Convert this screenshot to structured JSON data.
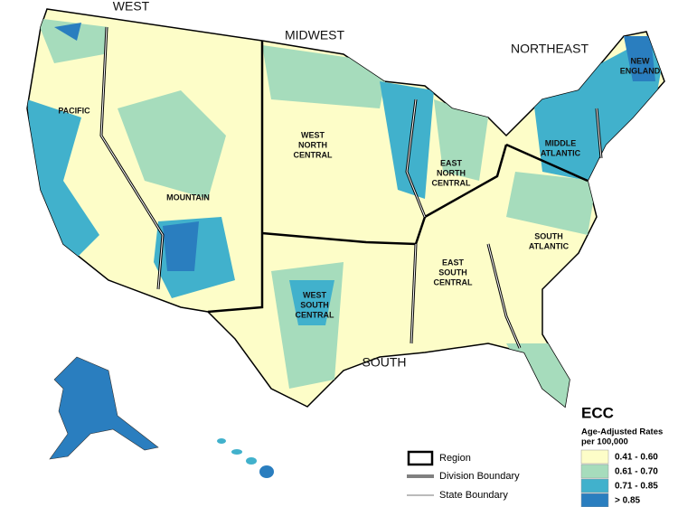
{
  "map": {
    "regions": [
      {
        "label": "WEST"
      },
      {
        "label": "MIDWEST"
      },
      {
        "label": "NORTHEAST"
      },
      {
        "label": "SOUTH"
      }
    ],
    "divisions": [
      {
        "lines": [
          "PACIFIC"
        ]
      },
      {
        "lines": [
          "MOUNTAIN"
        ]
      },
      {
        "lines": [
          "WEST",
          "NORTH",
          "CENTRAL"
        ]
      },
      {
        "lines": [
          "EAST",
          "NORTH",
          "CENTRAL"
        ]
      },
      {
        "lines": [
          "MIDDLE",
          "ATLANTIC"
        ]
      },
      {
        "lines": [
          "NEW",
          "ENGLAND"
        ]
      },
      {
        "lines": [
          "SOUTH",
          "ATLANTIC"
        ]
      },
      {
        "lines": [
          "EAST",
          "SOUTH",
          "CENTRAL"
        ]
      },
      {
        "lines": [
          "WEST",
          "SOUTH",
          "CENTRAL"
        ]
      }
    ],
    "legend": {
      "title": "ECC",
      "subtitle": [
        "Age-Adjusted Rates",
        "per 100,000"
      ],
      "classes": [
        {
          "label": "0.41 - 0.60",
          "color": "#fdfdc8"
        },
        {
          "label": "0.61 - 0.70",
          "color": "#a6dcbc"
        },
        {
          "label": "0.71 - 0.85",
          "color": "#41b1cc"
        },
        {
          "label": "> 0.85",
          "color": "#2a7ebf"
        }
      ]
    },
    "boundary_legend": [
      {
        "label": "Region"
      },
      {
        "label": "Division Boundary"
      },
      {
        "label": "State Boundary"
      }
    ]
  }
}
